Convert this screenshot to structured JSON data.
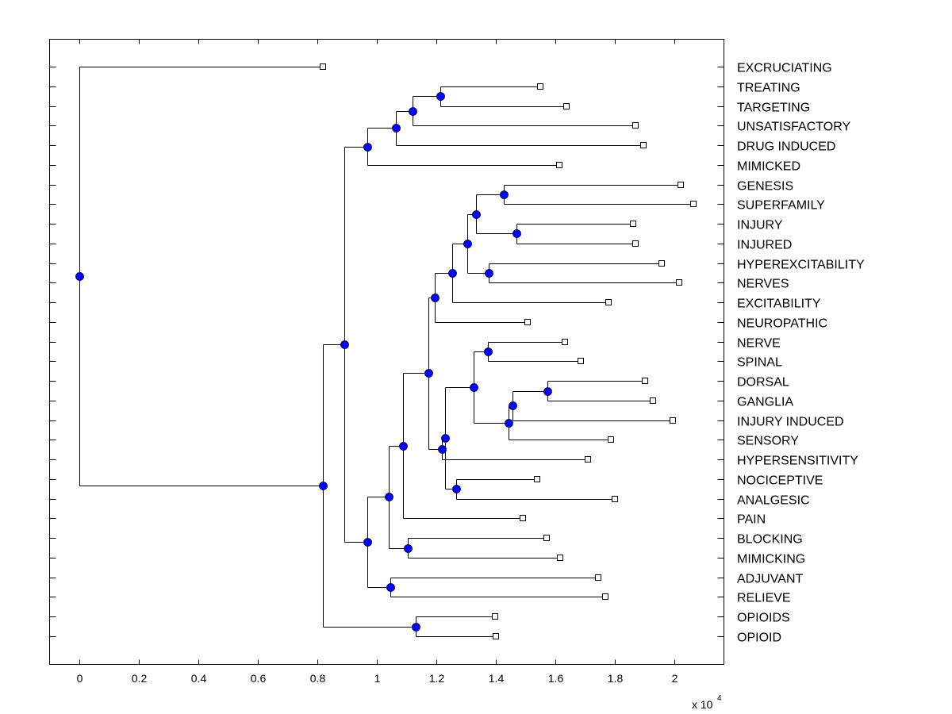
{
  "chart_data": {
    "type": "dendrogram",
    "title": "",
    "xlabel": "",
    "ylabel": "",
    "x_multiplier_label": "x 10",
    "x_multiplier_exponent": "4",
    "xlim": [
      -0.1,
      2.17
    ],
    "xticks": [
      0,
      0.2,
      0.4,
      0.6,
      0.8,
      1,
      1.2,
      1.4,
      1.6,
      1.8,
      2
    ],
    "xtick_labels": [
      "0",
      "0.2",
      "0.4",
      "0.6",
      "0.8",
      "1",
      "1.2",
      "1.4",
      "1.6",
      "1.8",
      "2"
    ],
    "grid": false,
    "node_color": "#0000ff",
    "leaf_marker": "square",
    "leaves": [
      "EXCRUCIATING",
      "TREATING",
      "TARGETING",
      "UNSATISFACTORY",
      "DRUG INDUCED",
      "MIMICKED",
      "GENESIS",
      "SUPERFAMILY",
      "INJURY",
      "INJURED",
      "HYPEREXCITABILITY",
      "NERVES",
      "EXCITABILITY",
      "NEUROPATHIC",
      "NERVE",
      "SPINAL",
      "DORSAL",
      "GANGLIA",
      "INJURY INDUCED",
      "SENSORY",
      "HYPERSENSITIVITY",
      "NOCICEPTIVE",
      "ANALGESIC",
      "PAIN",
      "BLOCKING",
      "MIMICKING",
      "ADJUVANT",
      "RELIEVE",
      "OPIOIDS",
      "OPIOID"
    ],
    "tree": {
      "x": 0,
      "children": [
        {
          "leaf": "EXCRUCIATING",
          "x": 0.819
        },
        {
          "x": 0.819,
          "children": [
            {
              "x": 0.891,
              "children": [
                {
                  "x": 0.968,
                  "children": [
                    {
                      "x": 1.064,
                      "children": [
                        {
                          "x": 1.12,
                          "children": [
                            {
                              "x": 1.213,
                              "children": [
                                {
                                  "leaf": "TREATING",
                                  "x": 1.549
                                },
                                {
                                  "leaf": "TARGETING",
                                  "x": 1.637
                                }
                              ]
                            },
                            {
                              "leaf": "UNSATISFACTORY",
                              "x": 1.869
                            }
                          ]
                        },
                        {
                          "leaf": "DRUG INDUCED",
                          "x": 1.896
                        }
                      ]
                    },
                    {
                      "leaf": "MIMICKED",
                      "x": 1.613
                    }
                  ]
                },
                {
                  "x": 0.968,
                  "children": [
                    {
                      "x": 1.04,
                      "children": [
                        {
                          "x": 1.088,
                          "children": [
                            {
                              "x": 1.173,
                              "children": [
                                {
                                  "x": 1.195,
                                  "children": [
                                    {
                                      "x": 1.253,
                                      "children": [
                                        {
                                          "x": 1.304,
                                          "children": [
                                            {
                                              "x": 1.333,
                                              "children": [
                                                {
                                                  "x": 1.427,
                                                  "children": [
                                                    {
                                                      "leaf": "GENESIS",
                                                      "x": 2.021
                                                    },
                                                    {
                                                      "leaf": "SUPERFAMILY",
                                                      "x": 2.064
                                                    }
                                                  ]
                                                },
                                                {
                                                  "x": 1.469,
                                                  "children": [
                                                    {
                                                      "leaf": "INJURY",
                                                      "x": 1.861
                                                    },
                                                    {
                                                      "leaf": "INJURED",
                                                      "x": 1.869
                                                    }
                                                  ]
                                                }
                                              ]
                                            },
                                            {
                                              "x": 1.376,
                                              "children": [
                                                {
                                                  "leaf": "HYPEREXCITABILITY",
                                                  "x": 1.957
                                                },
                                                {
                                                  "leaf": "NERVES",
                                                  "x": 2.016
                                                }
                                              ]
                                            }
                                          ]
                                        },
                                        {
                                          "leaf": "EXCITABILITY",
                                          "x": 1.779
                                        }
                                      ]
                                    },
                                    {
                                      "leaf": "NEUROPATHIC",
                                      "x": 1.507
                                    }
                                  ]
                                },
                                {
                                  "x": 1.219,
                                  "children": [
                                    {
                                      "x": 1.229,
                                      "children": [
                                        {
                                          "x": 1.325,
                                          "children": [
                                            {
                                              "x": 1.373,
                                              "children": [
                                                {
                                                  "leaf": "NERVE",
                                                  "x": 1.632
                                                },
                                                {
                                                  "leaf": "SPINAL",
                                                  "x": 1.685
                                                }
                                              ]
                                            },
                                            {
                                              "x": 1.443,
                                              "children": [
                                                {
                                                  "x": 1.456,
                                                  "children": [
                                                    {
                                                      "x": 1.573,
                                                      "children": [
                                                        {
                                                          "leaf": "DORSAL",
                                                          "x": 1.901
                                                        },
                                                        {
                                                          "leaf": "GANGLIA",
                                                          "x": 1.928
                                                        }
                                                      ]
                                                    },
                                                    {
                                                      "leaf": "INJURY INDUCED",
                                                      "x": 1.995
                                                    }
                                                  ]
                                                },
                                                {
                                                  "leaf": "SENSORY",
                                                  "x": 1.787
                                                }
                                              ]
                                            }
                                          ]
                                        },
                                        {
                                          "x": 1.267,
                                          "children": [
                                            {
                                              "leaf": "NOCICEPTIVE",
                                              "x": 1.539
                                            },
                                            {
                                              "leaf": "ANALGESIC",
                                              "x": 1.8
                                            }
                                          ]
                                        }
                                      ]
                                    },
                                    {
                                      "leaf": "HYPERSENSITIVITY",
                                      "x": 1.709
                                    }
                                  ]
                                }
                              ]
                            },
                            {
                              "leaf": "PAIN",
                              "x": 1.491
                            }
                          ]
                        },
                        {
                          "x": 1.104,
                          "children": [
                            {
                              "leaf": "BLOCKING",
                              "x": 1.571
                            },
                            {
                              "leaf": "MIMICKING",
                              "x": 1.616
                            }
                          ]
                        }
                      ]
                    },
                    {
                      "x": 1.045,
                      "children": [
                        {
                          "leaf": "ADJUVANT",
                          "x": 1.744
                        },
                        {
                          "leaf": "RELIEVE",
                          "x": 1.768
                        }
                      ]
                    }
                  ]
                }
              ]
            },
            {
              "x": 1.131,
              "children": [
                {
                  "leaf": "OPIOIDS",
                  "x": 1.397
                },
                {
                  "leaf": "OPIOID",
                  "x": 1.4
                }
              ]
            }
          ]
        }
      ]
    }
  }
}
